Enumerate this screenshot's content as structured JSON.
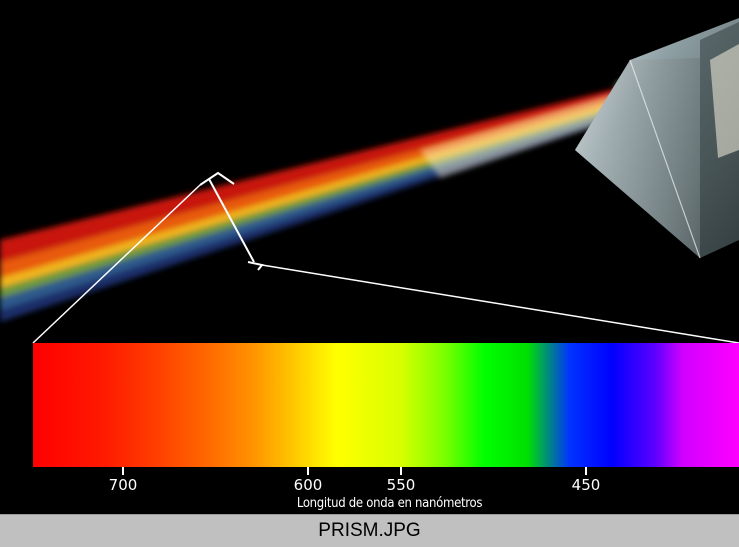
{
  "image": {
    "caption": "PRISM.JPG",
    "axis_label": "Longitud de onda en nanómetros",
    "ticks": [
      {
        "label": "700",
        "value": 700
      },
      {
        "label": "600",
        "value": 600
      },
      {
        "label": "550",
        "value": 550
      },
      {
        "label": "450",
        "value": 450
      }
    ]
  },
  "colors": {
    "background": "#000000",
    "caption_bar": "#c0c0c0",
    "caption_text": "#000000",
    "labels": "#ffffff"
  }
}
